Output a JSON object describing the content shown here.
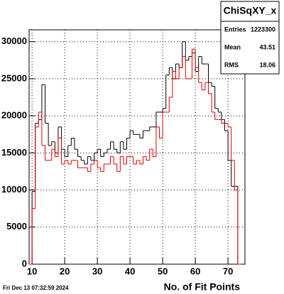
{
  "chart_data": {
    "type": "histogram",
    "x_label": "No. of Fit Points",
    "timestamp": "Fri Dec 13 07:32:59 2024",
    "stats": {
      "title": "ChiSqXY_x",
      "entries_label": "Entries",
      "entries": 1223300,
      "mean_label": "Mean",
      "mean": 43.51,
      "rms_label": "RMS",
      "rms": 18.06
    },
    "bins": [
      9,
      10,
      11,
      12,
      13,
      14,
      15,
      16,
      17,
      18,
      19,
      20,
      21,
      22,
      23,
      24,
      25,
      26,
      27,
      28,
      29,
      30,
      31,
      32,
      33,
      34,
      35,
      36,
      37,
      38,
      39,
      40,
      41,
      42,
      43,
      44,
      45,
      46,
      47,
      48,
      49,
      50,
      51,
      52,
      53,
      54,
      55,
      56,
      57,
      58,
      59,
      60,
      61,
      62,
      63,
      64,
      65,
      66,
      67,
      68,
      69,
      70,
      71,
      72,
      73,
      74
    ],
    "series": [
      {
        "color": "#000000",
        "values": [
          0,
          9800,
          19000,
          19500,
          24200,
          19000,
          16000,
          16500,
          15000,
          18500,
          15500,
          14500,
          16000,
          17000,
          15500,
          14500,
          14000,
          13500,
          14500,
          14000,
          15000,
          15500,
          14500,
          15000,
          15500,
          16500,
          15500,
          15000,
          16500,
          15500,
          17000,
          18000,
          17500,
          17500,
          17000,
          18000,
          18000,
          18500,
          18500,
          20500,
          20500,
          21000,
          25500,
          26500,
          25000,
          27000,
          26500,
          30000,
          27500,
          28000,
          28500,
          26000,
          28000,
          27000,
          27000,
          24500,
          24000,
          21000,
          20500,
          19500,
          18000,
          14000,
          10500,
          10500,
          0
        ]
      },
      {
        "color": "#e00000",
        "values": [
          0,
          7500,
          18500,
          20500,
          16000,
          14000,
          14000,
          15500,
          14500,
          17000,
          13500,
          14000,
          13500,
          14000,
          14000,
          13000,
          13000,
          13000,
          12500,
          13500,
          14000,
          13000,
          12500,
          13500,
          13500,
          14500,
          13500,
          12500,
          14500,
          13500,
          14500,
          14500,
          13500,
          14000,
          13500,
          14500,
          14000,
          15500,
          14500,
          18500,
          17000,
          20500,
          20500,
          22500,
          26000,
          25000,
          26500,
          28000,
          25000,
          25000,
          29000,
          26500,
          24500,
          23500,
          24500,
          23000,
          20500,
          19500,
          19500,
          19000,
          19000,
          18500,
          14000,
          10000,
          0
        ]
      }
    ],
    "xlim": [
      9.1,
      75.2
    ],
    "ylim": [
      0,
      31600
    ],
    "xticks": [
      10,
      20,
      30,
      40,
      50,
      60,
      70
    ],
    "yticks": [
      0,
      5000,
      10000,
      15000,
      20000,
      25000,
      30000
    ],
    "grid": true
  }
}
